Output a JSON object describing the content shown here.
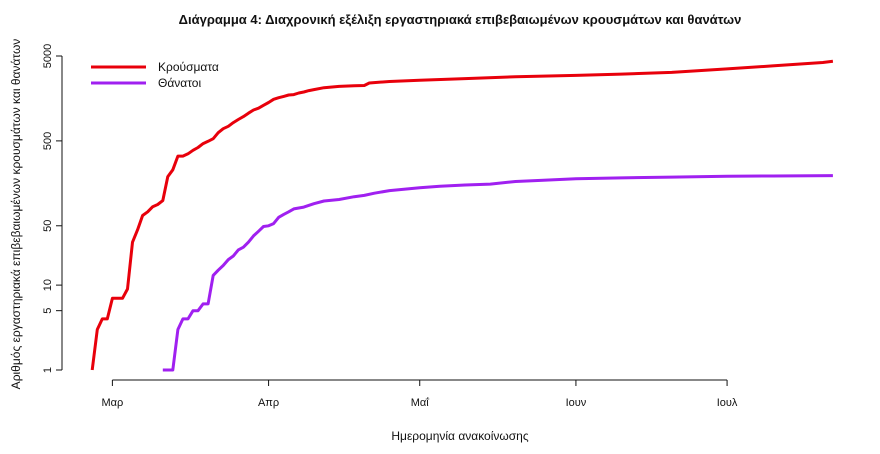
{
  "chart_data": {
    "type": "line",
    "title": "Διάγραμμα 4: Διαχρονική εξέλιξη εργαστηριακά επιβεβαιωμένων κρουσμάτων και θανάτων",
    "xlabel": "Ημερομηνία ανακοίνωσης",
    "ylabel": "Αριθμός εργαστηριακά επιβεβαιωμένων κρουσμάτων και θανάτων",
    "y_scale": "log",
    "yticks": [
      1,
      5,
      10,
      50,
      500,
      5000
    ],
    "ytick_labels": [
      "1",
      "5",
      "10",
      "50",
      "500",
      "5000"
    ],
    "ylim": [
      1,
      5000
    ],
    "xlim": [
      "2020-02-20",
      "2020-07-25"
    ],
    "xticks": [
      {
        "date": "2020-03-01",
        "label": "Μαρ"
      },
      {
        "date": "2020-04-01",
        "label": "Απρ"
      },
      {
        "date": "2020-05-01",
        "label": "Μαΐ"
      },
      {
        "date": "2020-06-01",
        "label": "Ιουν"
      },
      {
        "date": "2020-07-01",
        "label": "Ιουλ"
      }
    ],
    "legend_position": "top-left",
    "grid": false,
    "series": [
      {
        "name": "Κρούσματα",
        "color": "#e8000b",
        "points": [
          [
            "2020-02-26",
            1
          ],
          [
            "2020-02-27",
            3
          ],
          [
            "2020-02-28",
            4
          ],
          [
            "2020-02-29",
            4
          ],
          [
            "2020-03-01",
            7
          ],
          [
            "2020-03-02",
            7
          ],
          [
            "2020-03-03",
            7
          ],
          [
            "2020-03-04",
            9
          ],
          [
            "2020-03-05",
            32
          ],
          [
            "2020-03-06",
            45
          ],
          [
            "2020-03-07",
            66
          ],
          [
            "2020-03-08",
            73
          ],
          [
            "2020-03-09",
            84
          ],
          [
            "2020-03-10",
            89
          ],
          [
            "2020-03-11",
            99
          ],
          [
            "2020-03-12",
            190
          ],
          [
            "2020-03-13",
            228
          ],
          [
            "2020-03-14",
            331
          ],
          [
            "2020-03-15",
            331
          ],
          [
            "2020-03-16",
            352
          ],
          [
            "2020-03-17",
            387
          ],
          [
            "2020-03-18",
            418
          ],
          [
            "2020-03-19",
            464
          ],
          [
            "2020-03-20",
            495
          ],
          [
            "2020-03-21",
            530
          ],
          [
            "2020-03-22",
            624
          ],
          [
            "2020-03-23",
            695
          ],
          [
            "2020-03-24",
            743
          ],
          [
            "2020-03-25",
            821
          ],
          [
            "2020-03-26",
            892
          ],
          [
            "2020-03-27",
            966
          ],
          [
            "2020-03-28",
            1061
          ],
          [
            "2020-03-29",
            1156
          ],
          [
            "2020-03-30",
            1212
          ],
          [
            "2020-03-31",
            1314
          ],
          [
            "2020-04-01",
            1415
          ],
          [
            "2020-04-02",
            1544
          ],
          [
            "2020-04-03",
            1613
          ],
          [
            "2020-04-04",
            1673
          ],
          [
            "2020-04-05",
            1735
          ],
          [
            "2020-04-06",
            1755
          ],
          [
            "2020-04-07",
            1832
          ],
          [
            "2020-04-08",
            1884
          ],
          [
            "2020-04-09",
            1955
          ],
          [
            "2020-04-10",
            2011
          ],
          [
            "2020-04-12",
            2114
          ],
          [
            "2020-04-15",
            2192
          ],
          [
            "2020-04-18",
            2235
          ],
          [
            "2020-04-20",
            2245
          ],
          [
            "2020-04-21",
            2401
          ],
          [
            "2020-04-25",
            2506
          ],
          [
            "2020-05-01",
            2591
          ],
          [
            "2020-05-10",
            2710
          ],
          [
            "2020-05-20",
            2850
          ],
          [
            "2020-06-01",
            2952
          ],
          [
            "2020-06-10",
            3058
          ],
          [
            "2020-06-20",
            3203
          ],
          [
            "2020-07-01",
            3519
          ],
          [
            "2020-07-10",
            3826
          ],
          [
            "2020-07-20",
            4193
          ],
          [
            "2020-07-22",
            4336
          ]
        ]
      },
      {
        "name": "Θάνατοι",
        "color": "#a020f0",
        "points": [
          [
            "2020-03-11",
            1
          ],
          [
            "2020-03-12",
            1
          ],
          [
            "2020-03-13",
            1
          ],
          [
            "2020-03-14",
            3
          ],
          [
            "2020-03-15",
            4
          ],
          [
            "2020-03-16",
            4
          ],
          [
            "2020-03-17",
            5
          ],
          [
            "2020-03-18",
            5
          ],
          [
            "2020-03-19",
            6
          ],
          [
            "2020-03-20",
            6
          ],
          [
            "2020-03-21",
            13
          ],
          [
            "2020-03-22",
            15
          ],
          [
            "2020-03-23",
            17
          ],
          [
            "2020-03-24",
            20
          ],
          [
            "2020-03-25",
            22
          ],
          [
            "2020-03-26",
            26
          ],
          [
            "2020-03-27",
            28
          ],
          [
            "2020-03-28",
            32
          ],
          [
            "2020-03-29",
            38
          ],
          [
            "2020-03-30",
            43
          ],
          [
            "2020-03-31",
            49
          ],
          [
            "2020-04-01",
            50
          ],
          [
            "2020-04-02",
            53
          ],
          [
            "2020-04-03",
            63
          ],
          [
            "2020-04-04",
            68
          ],
          [
            "2020-04-05",
            73
          ],
          [
            "2020-04-06",
            79
          ],
          [
            "2020-04-07",
            81
          ],
          [
            "2020-04-08",
            83
          ],
          [
            "2020-04-10",
            91
          ],
          [
            "2020-04-12",
            98
          ],
          [
            "2020-04-15",
            102
          ],
          [
            "2020-04-18",
            110
          ],
          [
            "2020-04-20",
            114
          ],
          [
            "2020-04-22",
            121
          ],
          [
            "2020-04-25",
            130
          ],
          [
            "2020-05-01",
            140
          ],
          [
            "2020-05-05",
            146
          ],
          [
            "2020-05-10",
            151
          ],
          [
            "2020-05-15",
            155
          ],
          [
            "2020-05-20",
            166
          ],
          [
            "2020-05-25",
            171
          ],
          [
            "2020-06-01",
            179
          ],
          [
            "2020-06-10",
            183
          ],
          [
            "2020-06-20",
            187
          ],
          [
            "2020-07-01",
            192
          ],
          [
            "2020-07-10",
            193
          ],
          [
            "2020-07-22",
            195
          ]
        ]
      }
    ]
  }
}
